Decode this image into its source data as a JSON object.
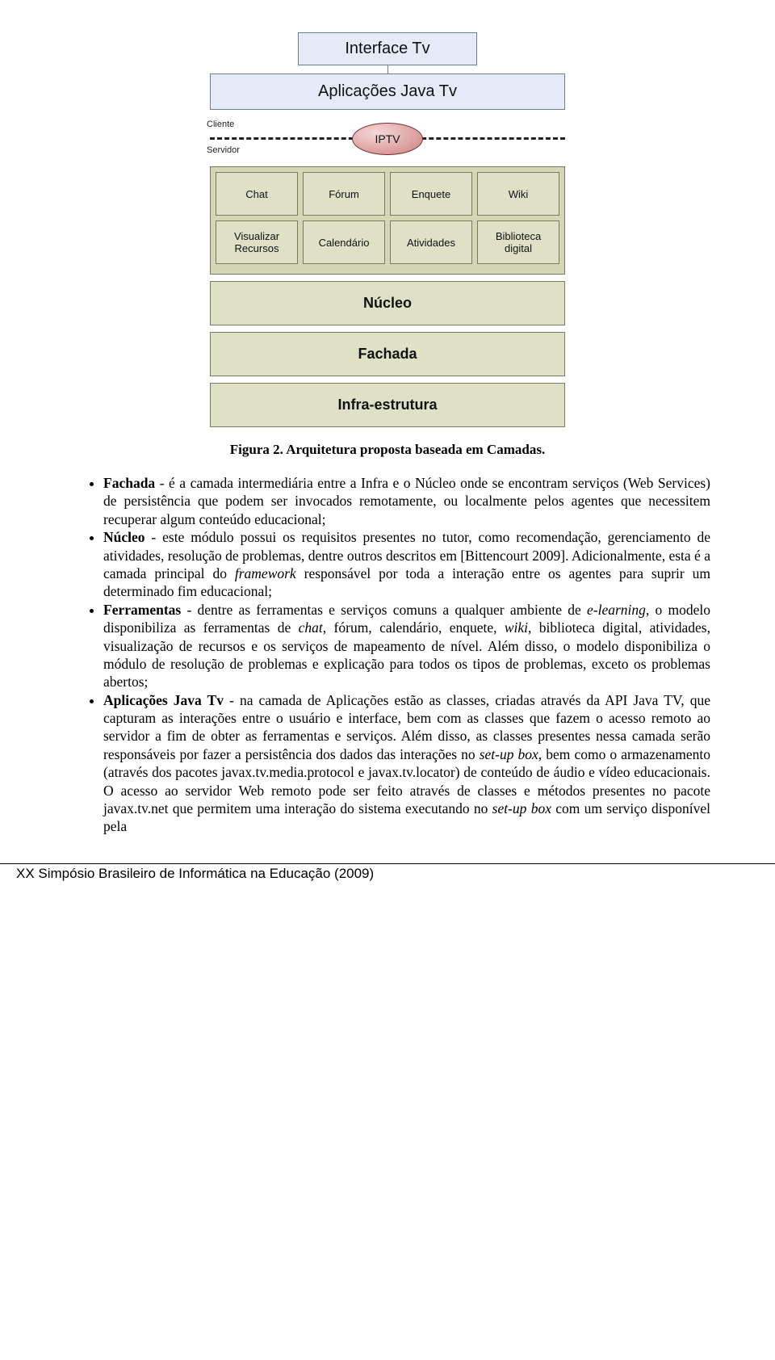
{
  "figure": {
    "interface_label": "Interface Tv",
    "apps_label": "Aplicações Java Tv",
    "cliente_label": "Cliente",
    "servidor_label": "Servidor",
    "iptv_label": "IPTV",
    "tools_row1": [
      "Chat",
      "Fórum",
      "Enquete",
      "Wiki"
    ],
    "tools_row2": [
      "Visualizar Recursos",
      "Calendário",
      "Atividades",
      "Biblioteca digital"
    ],
    "layers": [
      "Núcleo",
      "Fachada",
      "Infra-estrutura"
    ],
    "caption": "Figura 2. Arquitetura proposta baseada em Camadas.",
    "colors": {
      "blue_box_fill": "#e4ebf7",
      "blue_box_border": "#6b7c97",
      "green_panel_fill": "#d4d7b6",
      "green_box_fill": "#dfe1c6",
      "green_border": "#7a7a63",
      "iptv_gradient_from": "#f5d9d9",
      "iptv_gradient_to": "#c47e7e",
      "iptv_border": "#7a2d2d"
    }
  },
  "bullets": {
    "b1_lead": "Fachada",
    "b1_text": " - é a camada intermediária entre a Infra e o Núcleo onde se encontram serviços (Web Services) de persistência que podem ser invocados remotamente, ou localmente pelos agentes que necessitem recuperar algum conteúdo educacional;",
    "b2_lead": "Núcleo",
    "b2_text_a": " - este módulo possui os requisitos presentes no tutor, como recomendação, gerenciamento de atividades, resolução de problemas, dentre outros descritos em [Bittencourt 2009]. Adicionalmente, esta é a camada principal do ",
    "b2_framework": "framework",
    "b2_text_b": " responsável por toda a interação entre os agentes para suprir um determinado fim educacional;",
    "b3_lead": "Ferramentas",
    "b3_text_a": " - dentre as ferramentas e serviços comuns a qualquer ambiente de ",
    "b3_elearning": "e-learning",
    "b3_text_b": ", o modelo disponibiliza as ferramentas de ",
    "b3_chat": "chat",
    "b3_text_c": ", fórum, calendário, enquete, ",
    "b3_wiki": "wiki",
    "b3_text_d": ", biblioteca digital, atividades, visualização de recursos e os serviços de mapeamento de nível. Além disso, o modelo disponibiliza o módulo de resolução de problemas e explicação para todos os tipos de problemas, exceto os problemas abertos;",
    "b4_lead": "Aplicações Java Tv",
    "b4_text_a": " - na camada de Aplicações estão as classes, criadas através da API Java TV, que capturam as interações entre o usuário e interface, bem com as classes que fazem o acesso remoto ao servidor a fim de obter as ferramentas e serviços. Além disso, as classes presentes nessa camada serão responsáveis por fazer a persistência dos dados das interações no ",
    "b4_setup1": "set-up box",
    "b4_text_b": ", bem como o armazenamento (através dos pacotes javax.tv.media.protocol e javax.tv.locator) de conteúdo de áudio e vídeo educacionais. O acesso ao servidor Web remoto pode ser feito através de classes e métodos presentes no pacote javax.tv.net que permitem uma interação do sistema executando no ",
    "b4_setup2": "set-up box",
    "b4_text_c": " com um serviço disponível pela"
  },
  "footer": "XX Simpósio Brasileiro de Informática na Educação (2009)"
}
